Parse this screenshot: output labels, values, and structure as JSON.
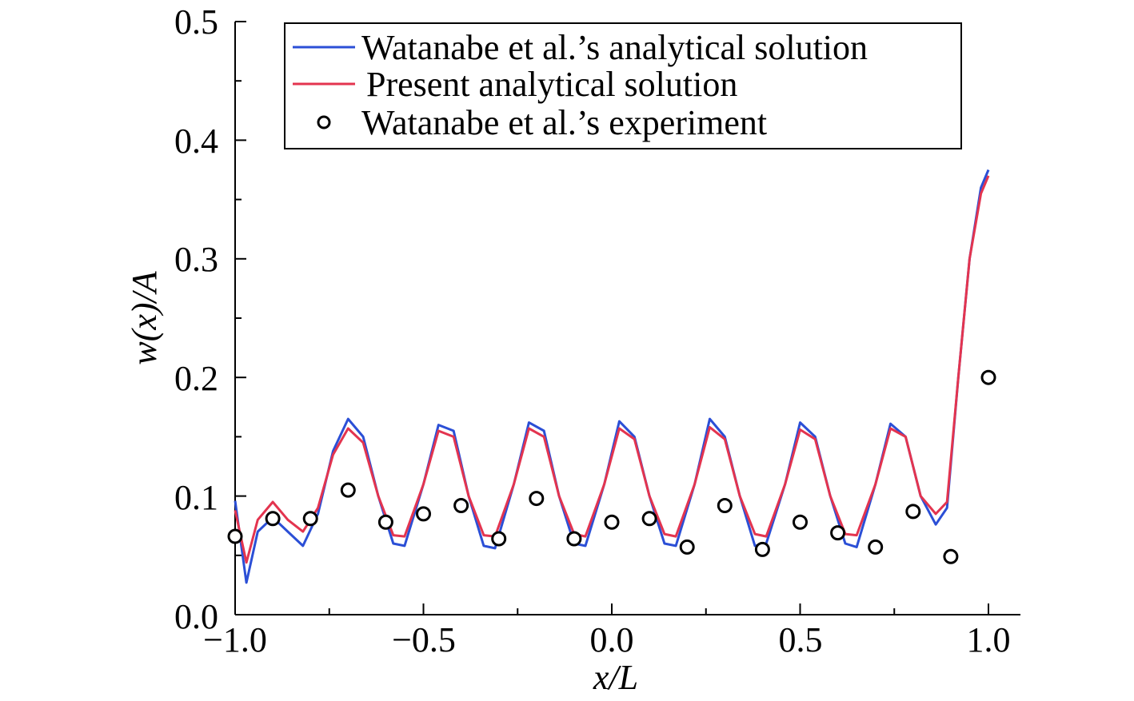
{
  "chart_data": {
    "type": "line",
    "xlabel": "x/L",
    "ylabel": "w(x)/A",
    "xlim": [
      -1.0,
      1.0
    ],
    "ylim": [
      0.0,
      0.5
    ],
    "x_ticks": [
      "−1.0",
      "−0.5",
      "0.0",
      "0.5",
      "1.0"
    ],
    "y_ticks": [
      "0.0",
      "0.1",
      "0.2",
      "0.3",
      "0.4",
      "0.5"
    ],
    "grid": false,
    "legend_position": "top",
    "series": [
      {
        "name": "Watanabe et al.’s analytical solution",
        "kind": "line",
        "color": "#2b4fd6",
        "x": [
          -1.0,
          -0.97,
          -0.94,
          -0.9,
          -0.86,
          -0.82,
          -0.78,
          -0.74,
          -0.7,
          -0.66,
          -0.62,
          -0.58,
          -0.55,
          -0.5,
          -0.46,
          -0.42,
          -0.38,
          -0.34,
          -0.31,
          -0.26,
          -0.22,
          -0.18,
          -0.14,
          -0.1,
          -0.07,
          -0.02,
          0.02,
          0.06,
          0.1,
          0.14,
          0.17,
          0.22,
          0.26,
          0.3,
          0.34,
          0.38,
          0.41,
          0.46,
          0.5,
          0.54,
          0.58,
          0.62,
          0.65,
          0.7,
          0.74,
          0.78,
          0.82,
          0.86,
          0.89,
          0.92,
          0.95,
          0.98,
          1.0
        ],
        "y": [
          0.096,
          0.027,
          0.07,
          0.082,
          0.07,
          0.058,
          0.085,
          0.138,
          0.165,
          0.15,
          0.1,
          0.06,
          0.058,
          0.11,
          0.16,
          0.155,
          0.1,
          0.058,
          0.056,
          0.11,
          0.162,
          0.155,
          0.1,
          0.06,
          0.058,
          0.11,
          0.163,
          0.15,
          0.1,
          0.06,
          0.058,
          0.11,
          0.165,
          0.15,
          0.1,
          0.058,
          0.06,
          0.11,
          0.162,
          0.15,
          0.1,
          0.06,
          0.057,
          0.11,
          0.161,
          0.15,
          0.1,
          0.076,
          0.09,
          0.2,
          0.3,
          0.36,
          0.375
        ]
      },
      {
        "name": "Present analytical solution",
        "kind": "line",
        "color": "#e3344f",
        "x": [
          -1.0,
          -0.97,
          -0.94,
          -0.9,
          -0.86,
          -0.82,
          -0.78,
          -0.74,
          -0.7,
          -0.66,
          -0.62,
          -0.58,
          -0.55,
          -0.5,
          -0.46,
          -0.42,
          -0.38,
          -0.34,
          -0.31,
          -0.26,
          -0.22,
          -0.18,
          -0.14,
          -0.1,
          -0.07,
          -0.02,
          0.02,
          0.06,
          0.1,
          0.14,
          0.17,
          0.22,
          0.26,
          0.3,
          0.34,
          0.38,
          0.41,
          0.46,
          0.5,
          0.54,
          0.58,
          0.62,
          0.65,
          0.7,
          0.74,
          0.78,
          0.82,
          0.86,
          0.89,
          0.92,
          0.95,
          0.98,
          1.0
        ],
        "y": [
          0.088,
          0.044,
          0.08,
          0.095,
          0.08,
          0.07,
          0.09,
          0.135,
          0.157,
          0.145,
          0.1,
          0.067,
          0.066,
          0.11,
          0.155,
          0.15,
          0.1,
          0.067,
          0.066,
          0.11,
          0.157,
          0.15,
          0.1,
          0.068,
          0.066,
          0.11,
          0.157,
          0.148,
          0.1,
          0.068,
          0.066,
          0.11,
          0.158,
          0.148,
          0.1,
          0.068,
          0.066,
          0.11,
          0.156,
          0.148,
          0.1,
          0.068,
          0.067,
          0.11,
          0.157,
          0.15,
          0.1,
          0.085,
          0.095,
          0.2,
          0.3,
          0.355,
          0.37
        ]
      },
      {
        "name": "Watanabe et al.’s experiment",
        "kind": "scatter",
        "color": "#000000",
        "x": [
          -1.0,
          -0.9,
          -0.8,
          -0.7,
          -0.6,
          -0.5,
          -0.4,
          -0.3,
          -0.2,
          -0.1,
          0.0,
          0.1,
          0.2,
          0.3,
          0.4,
          0.5,
          0.6,
          0.7,
          0.8,
          0.9,
          1.0
        ],
        "y": [
          0.066,
          0.081,
          0.081,
          0.105,
          0.078,
          0.085,
          0.092,
          0.064,
          0.098,
          0.064,
          0.078,
          0.081,
          0.057,
          0.092,
          0.055,
          0.078,
          0.069,
          0.057,
          0.087,
          0.049,
          0.2
        ]
      }
    ]
  }
}
